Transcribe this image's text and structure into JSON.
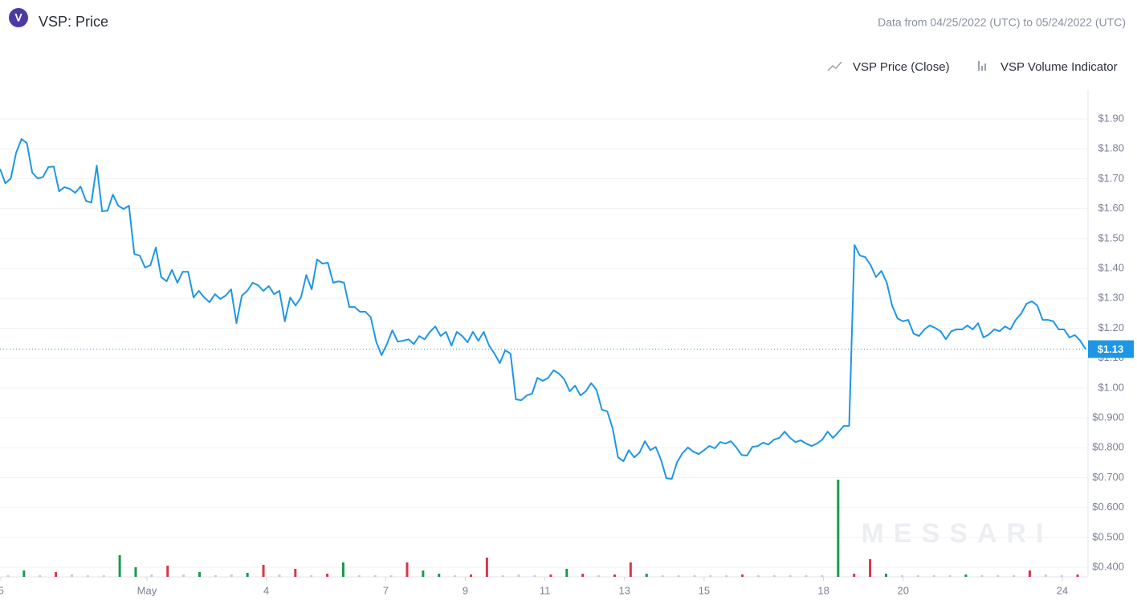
{
  "chart_data": {
    "type": "line",
    "title": "VSP: Price",
    "logo_letter": "V",
    "subtitle": "Data from 04/25/2022 (UTC) to 05/24/2022 (UTC)",
    "watermark": "MESSARI",
    "legend_position": "top-right",
    "grid": true,
    "xlim": [
      "2022-04-27T07:25",
      "2022-05-24T15:30"
    ],
    "xticks": [
      {
        "value": "2022-04-27T08:00",
        "label": "5"
      },
      {
        "value": "2022-05-01",
        "label": "May"
      },
      {
        "value": "2022-05-04",
        "label": "4"
      },
      {
        "value": "2022-05-07",
        "label": "7"
      },
      {
        "value": "2022-05-09",
        "label": "9"
      },
      {
        "value": "2022-05-11",
        "label": "11"
      },
      {
        "value": "2022-05-13",
        "label": "13"
      },
      {
        "value": "2022-05-15",
        "label": "15"
      },
      {
        "value": "2022-05-18",
        "label": "18"
      },
      {
        "value": "2022-05-20",
        "label": "20"
      },
      {
        "value": "2022-05-24",
        "label": "24"
      }
    ],
    "ylim": [
      0.368,
      1.997
    ],
    "yticks": [
      {
        "value": 1.9,
        "label": "$1.90"
      },
      {
        "value": 1.8,
        "label": "$1.80"
      },
      {
        "value": 1.7,
        "label": "$1.70"
      },
      {
        "value": 1.6,
        "label": "$1.60"
      },
      {
        "value": 1.5,
        "label": "$1.50"
      },
      {
        "value": 1.4,
        "label": "$1.40"
      },
      {
        "value": 1.3,
        "label": "$1.30"
      },
      {
        "value": 1.2,
        "label": "$1.20"
      },
      {
        "value": 1.1,
        "label": "$1.10"
      },
      {
        "value": 1.0,
        "label": "$1.00"
      },
      {
        "value": 0.9,
        "label": "$0.900"
      },
      {
        "value": 0.8,
        "label": "$0.800"
      },
      {
        "value": 0.7,
        "label": "$0.700"
      },
      {
        "value": 0.6,
        "label": "$0.600"
      },
      {
        "value": 0.5,
        "label": "$0.500"
      },
      {
        "value": 0.4,
        "label": "$0.400"
      }
    ],
    "current_price": {
      "value": 1.13,
      "label": "$1.13"
    },
    "y2lim": [
      0,
      606
    ],
    "series": [
      {
        "name": "VSP Price (Close)",
        "color": "#1e96e6",
        "values": [
          1.733,
          1.685,
          1.701,
          1.787,
          1.833,
          1.819,
          1.72,
          1.701,
          1.706,
          1.739,
          1.741,
          1.658,
          1.672,
          1.666,
          1.653,
          1.674,
          1.626,
          1.62,
          1.744,
          1.591,
          1.593,
          1.647,
          1.61,
          1.599,
          1.61,
          1.448,
          1.443,
          1.403,
          1.411,
          1.47,
          1.371,
          1.357,
          1.395,
          1.352,
          1.389,
          1.389,
          1.303,
          1.325,
          1.303,
          1.287,
          1.314,
          1.298,
          1.309,
          1.33,
          1.217,
          1.309,
          1.325,
          1.352,
          1.344,
          1.325,
          1.341,
          1.314,
          1.325,
          1.223,
          1.303,
          1.276,
          1.303,
          1.378,
          1.33,
          1.43,
          1.416,
          1.419,
          1.352,
          1.357,
          1.352,
          1.271,
          1.271,
          1.255,
          1.255,
          1.236,
          1.155,
          1.11,
          1.147,
          1.193,
          1.155,
          1.158,
          1.163,
          1.147,
          1.174,
          1.163,
          1.188,
          1.206,
          1.174,
          1.188,
          1.142,
          1.188,
          1.174,
          1.153,
          1.188,
          1.158,
          1.188,
          1.142,
          1.115,
          1.083,
          1.126,
          1.115,
          0.962,
          0.959,
          0.975,
          0.981,
          1.034,
          1.024,
          1.034,
          1.059,
          1.048,
          1.029,
          0.989,
          1.008,
          0.975,
          0.989,
          1.016,
          0.994,
          0.927,
          0.922,
          0.865,
          0.768,
          0.755,
          0.792,
          0.768,
          0.784,
          0.822,
          0.792,
          0.803,
          0.76,
          0.698,
          0.696,
          0.752,
          0.782,
          0.801,
          0.787,
          0.779,
          0.792,
          0.806,
          0.798,
          0.819,
          0.814,
          0.822,
          0.801,
          0.776,
          0.774,
          0.803,
          0.806,
          0.817,
          0.811,
          0.827,
          0.833,
          0.854,
          0.833,
          0.819,
          0.825,
          0.814,
          0.806,
          0.814,
          0.827,
          0.854,
          0.833,
          0.852,
          0.873,
          0.873,
          1.478,
          1.443,
          1.438,
          1.411,
          1.371,
          1.392,
          1.352,
          1.276,
          1.233,
          1.223,
          1.228,
          1.182,
          1.174,
          1.196,
          1.209,
          1.201,
          1.19,
          1.163,
          1.19,
          1.196,
          1.196,
          1.209,
          1.196,
          1.217,
          1.169,
          1.179,
          1.196,
          1.19,
          1.206,
          1.196,
          1.228,
          1.249,
          1.282,
          1.29,
          1.276,
          1.228,
          1.228,
          1.223,
          1.196,
          1.196,
          1.169,
          1.177,
          1.158,
          1.13
        ]
      },
      {
        "name": "VSP Volume Indicator",
        "axis": "y2",
        "type": "bar",
        "values": [
          2,
          8,
          2,
          6,
          3,
          2,
          2,
          27,
          12,
          3,
          14,
          3,
          6,
          2,
          3,
          5,
          15,
          3,
          10,
          2,
          4,
          18,
          2,
          2,
          2,
          18,
          8,
          4,
          2,
          3,
          24,
          2,
          3,
          2,
          3,
          10,
          4,
          2,
          3,
          18,
          4,
          2,
          2,
          2,
          2,
          2,
          3,
          2,
          2,
          2,
          2,
          2,
          121,
          4,
          22,
          4,
          2,
          2,
          2,
          2,
          3,
          2,
          2,
          2,
          8,
          3,
          2,
          3
        ],
        "colors": [
          "#c9cad3",
          "#1a9a4a",
          "#c9cad3",
          "#d9364a",
          "#c9cad3",
          "#c9cad3",
          "#c9cad3",
          "#1a9a4a",
          "#1a9a4a",
          "#c9cad3",
          "#d9364a",
          "#c9cad3",
          "#1a9a4a",
          "#c9cad3",
          "#c9cad3",
          "#1a9a4a",
          "#d9364a",
          "#c9cad3",
          "#d9364a",
          "#c9cad3",
          "#d9364a",
          "#1a9a4a",
          "#c9cad3",
          "#c9cad3",
          "#c9cad3",
          "#d9364a",
          "#1a9a4a",
          "#1a9a4a",
          "#c9cad3",
          "#d9364a",
          "#d9364a",
          "#c9cad3",
          "#c9cad3",
          "#c9cad3",
          "#d9364a",
          "#1a9a4a",
          "#d9364a",
          "#c9cad3",
          "#d9364a",
          "#d9364a",
          "#1a9a4a",
          "#c9cad3",
          "#c9cad3",
          "#c9cad3",
          "#c9cad3",
          "#c9cad3",
          "#d9364a",
          "#c9cad3",
          "#c9cad3",
          "#c9cad3",
          "#c9cad3",
          "#c9cad3",
          "#1a9a4a",
          "#d9364a",
          "#d9364a",
          "#1a9a4a",
          "#c9cad3",
          "#c9cad3",
          "#c9cad3",
          "#c9cad3",
          "#1a9a4a",
          "#c9cad3",
          "#c9cad3",
          "#c9cad3",
          "#d9364a",
          "#c9cad3",
          "#c9cad3",
          "#d9364a"
        ]
      }
    ]
  }
}
